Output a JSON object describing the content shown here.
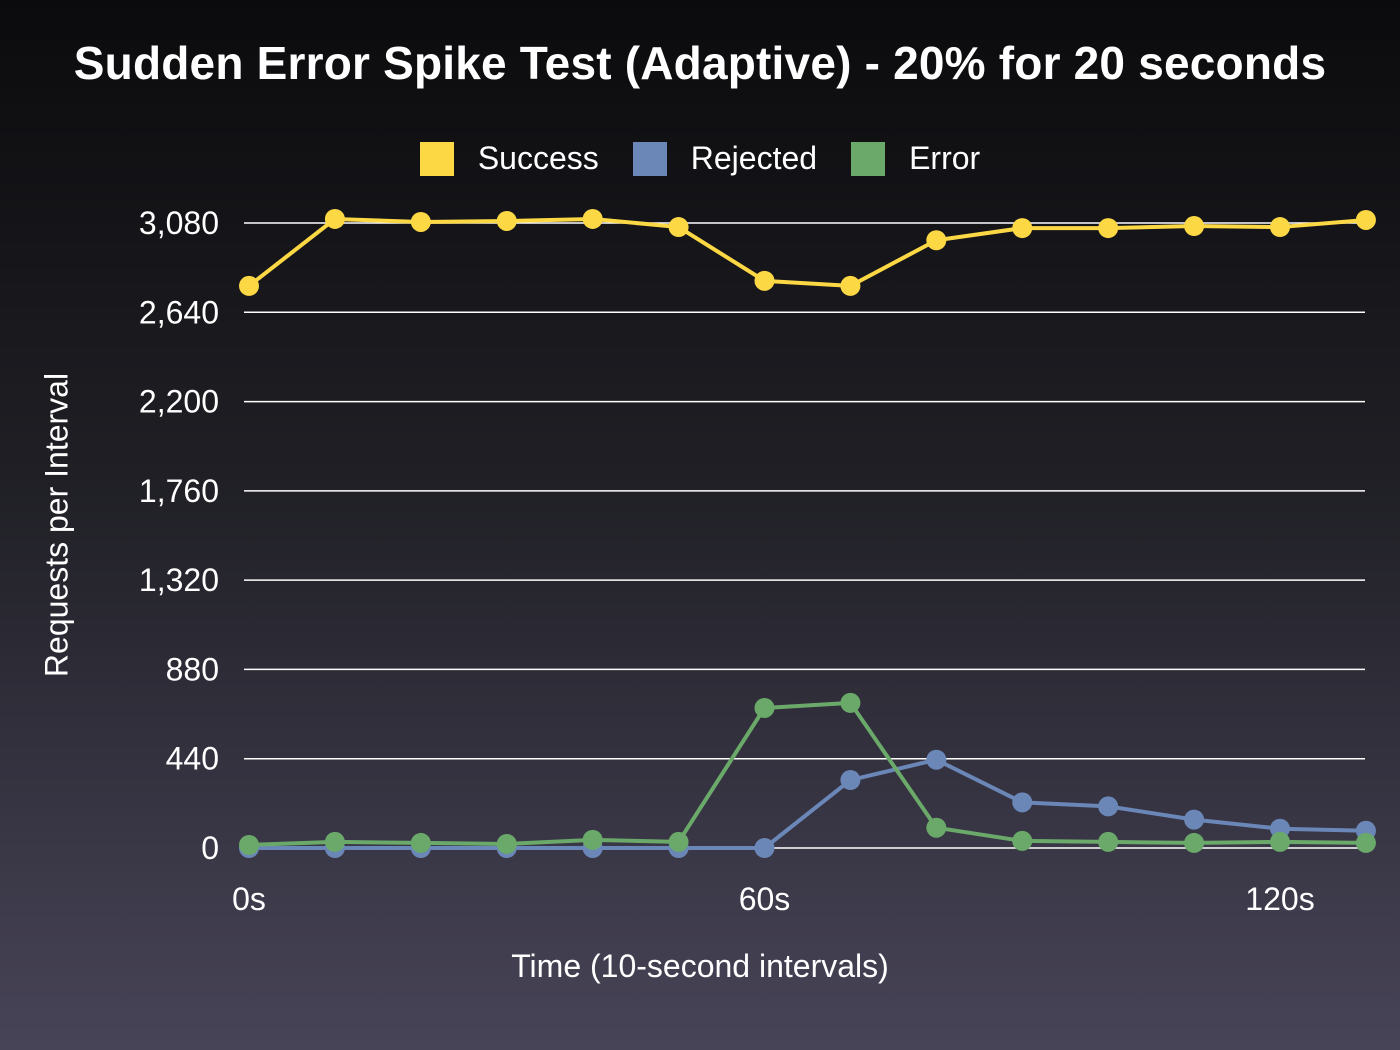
{
  "chart_data": {
    "type": "line",
    "title": "Sudden Error Spike Test (Adaptive) - 20% for 20 seconds",
    "xlabel": "Time (10-second intervals)",
    "ylabel": "Requests per Interval",
    "x": [
      0,
      10,
      20,
      30,
      40,
      50,
      60,
      70,
      80,
      90,
      100,
      110,
      120,
      130
    ],
    "x_ticks": [
      {
        "value": 0,
        "label": "0s"
      },
      {
        "value": 60,
        "label": "60s"
      },
      {
        "value": 120,
        "label": "120s"
      }
    ],
    "ylim": [
      0,
      3080
    ],
    "y_ticks": [
      {
        "value": 0,
        "label": "0"
      },
      {
        "value": 440,
        "label": "440"
      },
      {
        "value": 880,
        "label": "880"
      },
      {
        "value": 1320,
        "label": "1,320"
      },
      {
        "value": 1760,
        "label": "1,760"
      },
      {
        "value": 2200,
        "label": "2,200"
      },
      {
        "value": 2640,
        "label": "2,640"
      },
      {
        "value": 3080,
        "label": "3,080"
      }
    ],
    "grid": true,
    "legend_position": "top-center",
    "series": [
      {
        "name": "Success",
        "color": "#fdd845",
        "values": [
          2770,
          3100,
          3085,
          3090,
          3100,
          3060,
          2795,
          2770,
          2995,
          3055,
          3055,
          3065,
          3060,
          3095
        ]
      },
      {
        "name": "Rejected",
        "color": "#6a87b7",
        "values": [
          0,
          0,
          0,
          0,
          0,
          0,
          0,
          335,
          435,
          225,
          205,
          140,
          95,
          85
        ]
      },
      {
        "name": "Error",
        "color": "#6aa96a",
        "values": [
          15,
          30,
          25,
          20,
          40,
          30,
          690,
          715,
          100,
          35,
          30,
          25,
          30,
          25
        ]
      }
    ]
  }
}
